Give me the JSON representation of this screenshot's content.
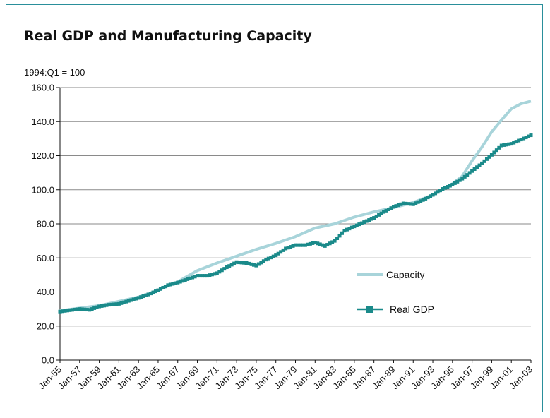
{
  "chart_data": {
    "type": "line",
    "title": "Real GDP and Manufacturing Capacity",
    "ylabel": "1994:Q1 = 100",
    "xlabel": "",
    "ylim": [
      0,
      160
    ],
    "yticks": [
      "0.0",
      "20.0",
      "40.0",
      "60.0",
      "80.0",
      "100.0",
      "120.0",
      "140.0",
      "160.0"
    ],
    "xlabels": [
      "Jan-55",
      "Jan-57",
      "Jan-59",
      "Jan-61",
      "Jan-63",
      "Jan-65",
      "Jan-67",
      "Jan-69",
      "Jan-71",
      "Jan-73",
      "Jan-75",
      "Jan-77",
      "Jan-79",
      "Jan-81",
      "Jan-83",
      "Jan-85",
      "Jan-87",
      "Jan-89",
      "Jan-91",
      "Jan-93",
      "Jan-95",
      "Jan-97",
      "Jan-99",
      "Jan-01",
      "Jan-03"
    ],
    "x_range": [
      1955.0,
      2003.0
    ],
    "grid": true,
    "legend_position": "center-right",
    "series": [
      {
        "name": "Capacity",
        "color": "#a8d4da",
        "marker": "none",
        "points": [
          [
            1955,
            29
          ],
          [
            1957,
            30.5
          ],
          [
            1959,
            32
          ],
          [
            1961,
            34.5
          ],
          [
            1963,
            37
          ],
          [
            1965,
            41
          ],
          [
            1967,
            46
          ],
          [
            1969,
            52.5
          ],
          [
            1971,
            57
          ],
          [
            1973,
            61
          ],
          [
            1975,
            65
          ],
          [
            1977,
            68.5
          ],
          [
            1979,
            72.5
          ],
          [
            1981,
            77.5
          ],
          [
            1983,
            80
          ],
          [
            1985,
            84
          ],
          [
            1987,
            87
          ],
          [
            1989,
            89.5
          ],
          [
            1991,
            92.5
          ],
          [
            1993,
            97
          ],
          [
            1995,
            103.5
          ],
          [
            1996,
            108
          ],
          [
            1997,
            117
          ],
          [
            1998,
            125
          ],
          [
            1999,
            134
          ],
          [
            2000,
            141
          ],
          [
            2001,
            147.5
          ],
          [
            2002,
            150.5
          ],
          [
            2003,
            152
          ]
        ]
      },
      {
        "name": "Real GDP",
        "color": "#1a8a8a",
        "marker": "square",
        "points": [
          [
            1955,
            28.5
          ],
          [
            1956,
            29.3
          ],
          [
            1957,
            30
          ],
          [
            1958,
            29.5
          ],
          [
            1959,
            31.5
          ],
          [
            1960,
            32.5
          ],
          [
            1961,
            33
          ],
          [
            1962,
            34.8
          ],
          [
            1963,
            36.5
          ],
          [
            1964,
            38.5
          ],
          [
            1965,
            41
          ],
          [
            1966,
            44
          ],
          [
            1967,
            45.5
          ],
          [
            1968,
            47.5
          ],
          [
            1969,
            49.5
          ],
          [
            1970,
            49.5
          ],
          [
            1971,
            51
          ],
          [
            1972,
            54.5
          ],
          [
            1973,
            57.5
          ],
          [
            1974,
            57
          ],
          [
            1975,
            55.5
          ],
          [
            1976,
            59
          ],
          [
            1977,
            61.5
          ],
          [
            1978,
            65.5
          ],
          [
            1979,
            67.5
          ],
          [
            1980,
            67.5
          ],
          [
            1981,
            69
          ],
          [
            1982,
            67
          ],
          [
            1983,
            70
          ],
          [
            1984,
            76
          ],
          [
            1985,
            78.5
          ],
          [
            1986,
            81
          ],
          [
            1987,
            83.5
          ],
          [
            1988,
            87
          ],
          [
            1989,
            90
          ],
          [
            1990,
            92
          ],
          [
            1991,
            91.5
          ],
          [
            1992,
            94
          ],
          [
            1993,
            97
          ],
          [
            1994,
            100.5
          ],
          [
            1995,
            103
          ],
          [
            1996,
            106.5
          ],
          [
            1997,
            111
          ],
          [
            1998,
            115.5
          ],
          [
            1999,
            120.5
          ],
          [
            2000,
            126
          ],
          [
            2001,
            127
          ],
          [
            2002,
            129.5
          ],
          [
            2003,
            132
          ]
        ]
      }
    ]
  }
}
